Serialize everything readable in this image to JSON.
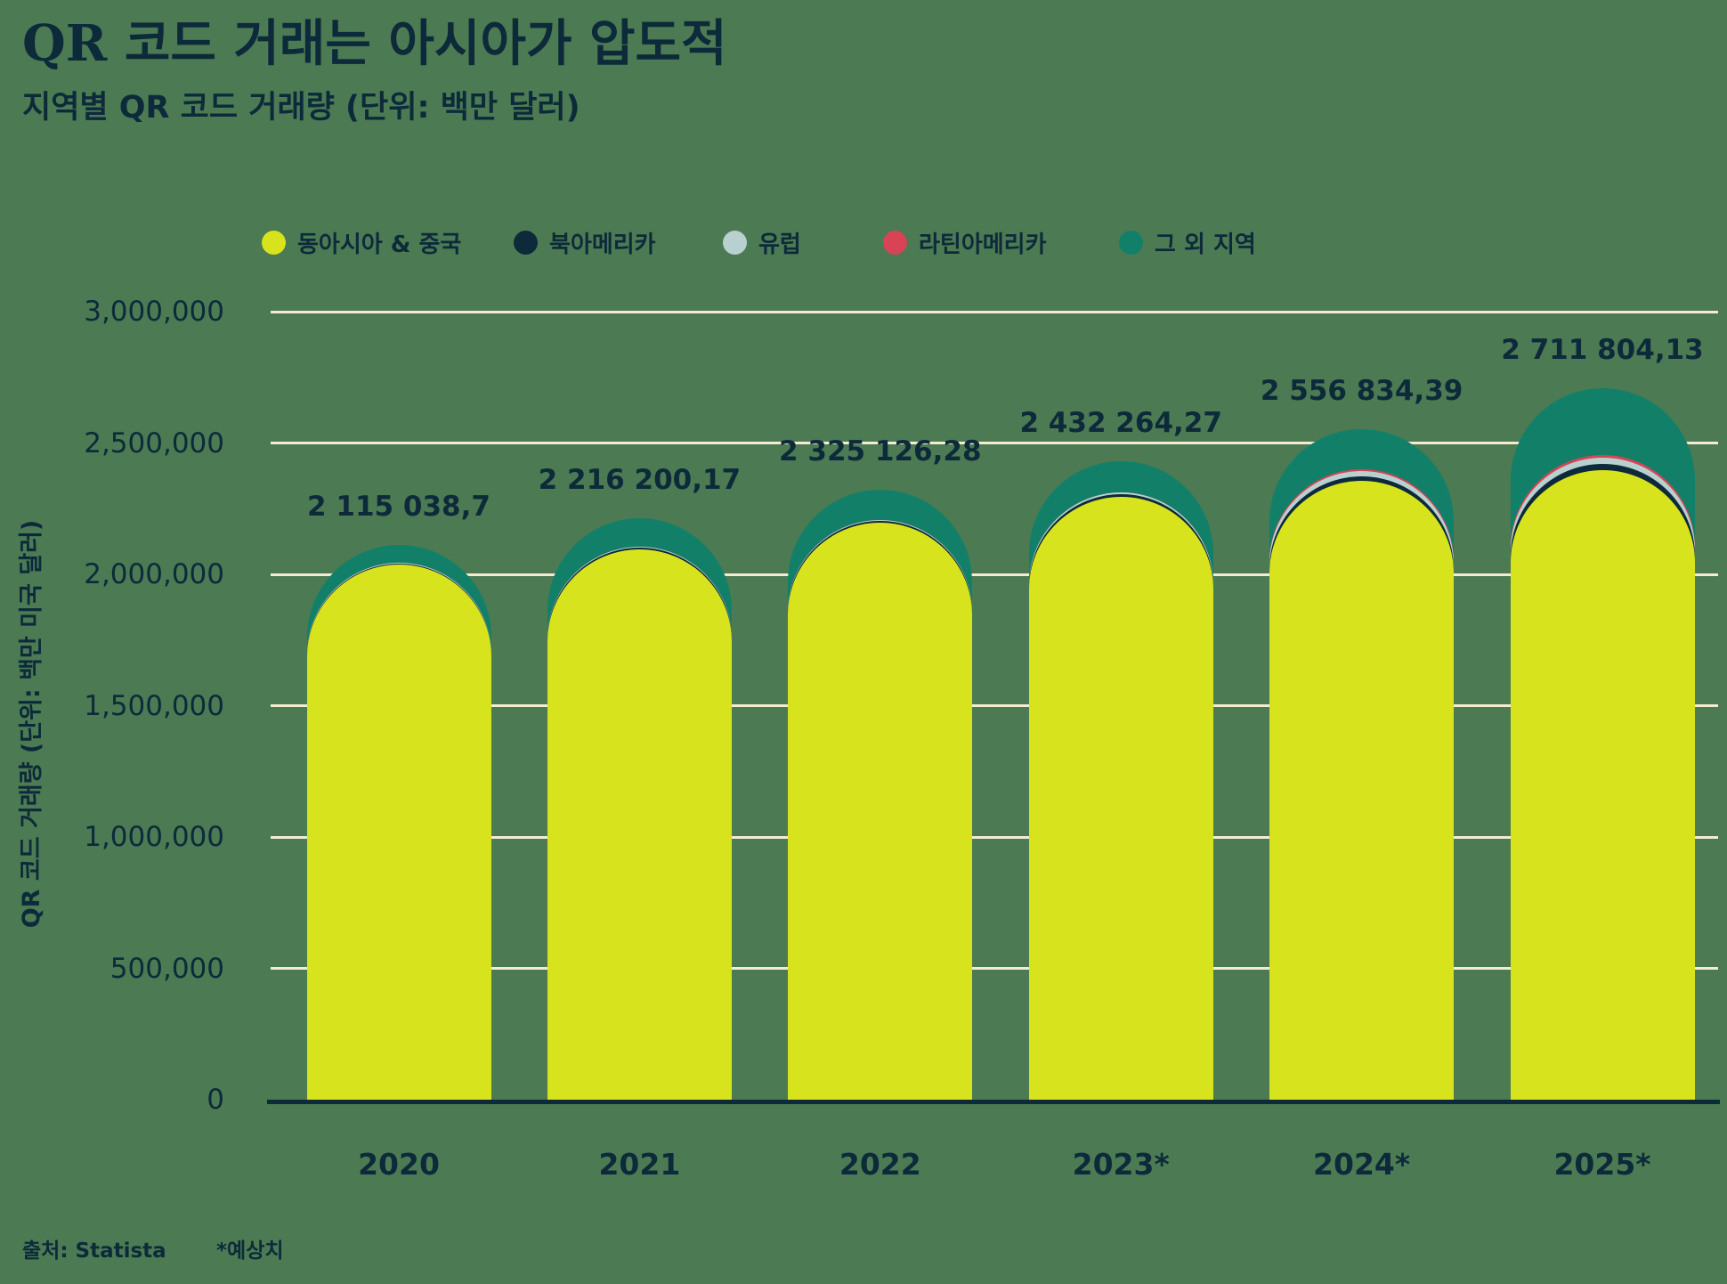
{
  "title": "QR 코드 거래는 아시아가 압도적",
  "subtitle": "지역별 QR 코드 거래량 (단위: 백만 달러)",
  "footer": {
    "source": "출처: Statista",
    "estimate_note": "*예상치"
  },
  "colors": {
    "background": "#4b7a53",
    "text": "#0d2a3a",
    "gridline": "#f3ecd2",
    "axis": "#0d2a3a"
  },
  "chart_data": {
    "type": "bar",
    "stacked": true,
    "rounded_caps": true,
    "grid": true,
    "legend_position": "top",
    "ylabel": "QR 코드 거래량 (단위: 백만 미국 달러)",
    "ylim": [
      0,
      3000000
    ],
    "ytick_labels": [
      "3,000,000",
      "2,500,000",
      "2,000,000",
      "1,500,000",
      "1,000,000",
      "500,000",
      "0"
    ],
    "ytick_values": [
      3000000,
      2500000,
      2000000,
      1500000,
      1000000,
      500000,
      0
    ],
    "categories": [
      "2020",
      "2021",
      "2022",
      "2023*",
      "2024*",
      "2025*"
    ],
    "totals": [
      2115038.7,
      2216200.17,
      2325126.28,
      2432264.27,
      2556834.39,
      2711804.13
    ],
    "total_labels": [
      "2 115 038,7",
      "2 216 200,17",
      "2 325 126,28",
      "2 432 264,27",
      "2 556 834,39",
      "2 711 804,13"
    ],
    "segments_estimated": true,
    "series": [
      {
        "name": "동아시아 & 중국",
        "color": "#d7e31c",
        "values": [
          2040000,
          2100000,
          2200000,
          2300000,
          2360000,
          2400000
        ]
      },
      {
        "name": "북아메리카",
        "color": "#0d2a3a",
        "values": [
          4000,
          5000,
          6000,
          10000,
          16000,
          25000
        ]
      },
      {
        "name": "유럽",
        "color": "#b8d0cf",
        "values": [
          2000,
          2500,
          3000,
          4000,
          22000,
          21000
        ]
      },
      {
        "name": "라틴아메리카",
        "color": "#d84356",
        "values": [
          1038.7,
          1200.17,
          1126.28,
          2264.27,
          5000,
          12000
        ]
      },
      {
        "name": "그 외 지역",
        "color": "#128069",
        "values": [
          68000,
          107500,
          115000,
          116000,
          153834.39,
          253804.13
        ]
      }
    ]
  }
}
